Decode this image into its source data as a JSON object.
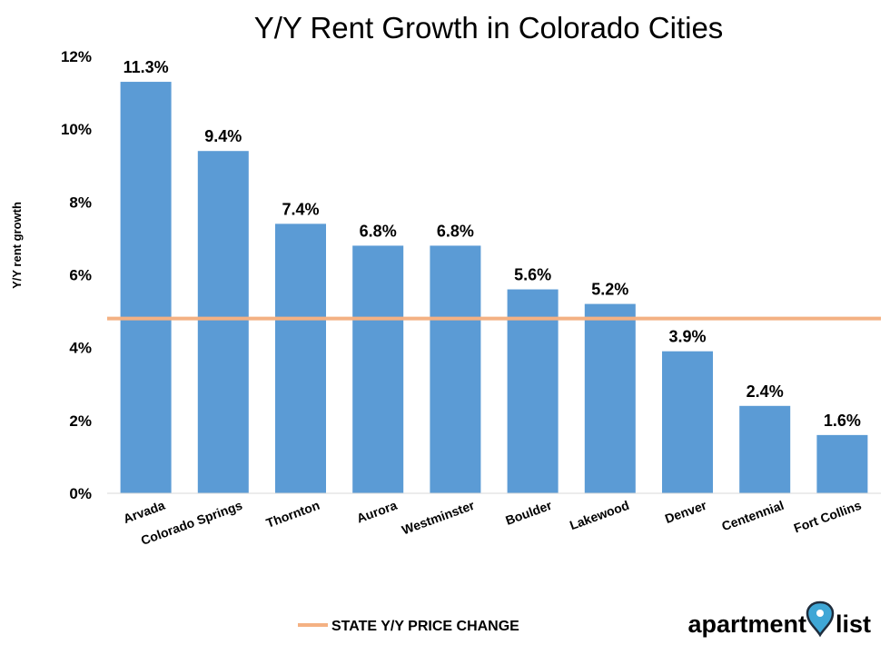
{
  "chart_data": {
    "type": "bar",
    "title": "Y/Y Rent Growth in Colorado Cities",
    "ylabel": "Y/Y rent growth",
    "xlabel": "",
    "ylim": [
      0,
      12
    ],
    "yticks": [
      0,
      2,
      4,
      6,
      8,
      10,
      12
    ],
    "ytick_labels": [
      "0%",
      "2%",
      "4%",
      "6%",
      "8%",
      "10%",
      "12%"
    ],
    "categories": [
      "Arvada",
      "Colorado Springs",
      "Thornton",
      "Aurora",
      "Westminster",
      "Boulder",
      "Lakewood",
      "Denver",
      "Centennial",
      "Fort Collins"
    ],
    "values": [
      11.3,
      9.4,
      7.4,
      6.8,
      6.8,
      5.6,
      5.2,
      3.9,
      2.4,
      1.6
    ],
    "data_labels": [
      "11.3%",
      "9.4%",
      "7.4%",
      "6.8%",
      "6.8%",
      "5.6%",
      "5.2%",
      "3.9%",
      "2.4%",
      "1.6%"
    ],
    "bar_color": "#5B9BD5",
    "reference_line": {
      "name": "STATE Y/Y PRICE CHANGE",
      "value": 4.8,
      "color": "#F4B183"
    },
    "grid": false,
    "legend_position": "bottom"
  },
  "branding": {
    "logo_left": "apartment",
    "logo_right": "list",
    "pin_color": "#3FA7D6",
    "pin_icon": "map-pin-icon"
  }
}
